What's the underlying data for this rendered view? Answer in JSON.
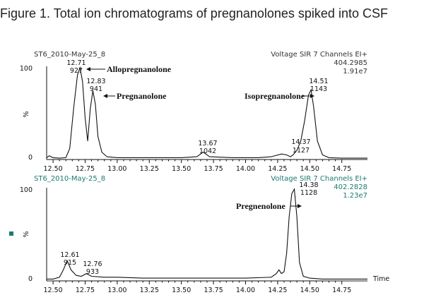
{
  "figure_title": "Figure 1. Total ion chromatograms of pregnanolones spiked into CSF",
  "legend_marker_color": "#1a7a70",
  "chart_data": [
    {
      "type": "line",
      "sample_label": "ST6_2010-May-25_8",
      "channel_info": "Voltage SIR 7 Channels EI+",
      "mass": "404.2985",
      "intensity": "1.91e7",
      "y_tick_labels": [
        "100",
        "%",
        "0"
      ],
      "x_ticks": [
        "12.50",
        "12.75",
        "13.00",
        "13.25",
        "13.50",
        "13.75",
        "14.00",
        "14.25",
        "14.50",
        "14.75"
      ],
      "xlim": [
        12.45,
        14.95
      ],
      "ylim": [
        0,
        100
      ],
      "x_axis_label": "",
      "series": [
        {
          "x": [
            12.45,
            12.47,
            12.5,
            12.55,
            12.6,
            12.63,
            12.66,
            12.69,
            12.71,
            12.73,
            12.75,
            12.77,
            12.79,
            12.81,
            12.83,
            12.85,
            12.88,
            12.92,
            13.0,
            13.2,
            13.5,
            13.62,
            13.67,
            13.72,
            13.9,
            14.1,
            14.2,
            14.28,
            14.32,
            14.35,
            14.37,
            14.4,
            14.43,
            14.46,
            14.49,
            14.51,
            14.53,
            14.56,
            14.6,
            14.65,
            14.75,
            14.95
          ],
          "y": [
            2,
            4,
            2,
            1.5,
            2,
            12,
            55,
            92,
            100,
            85,
            45,
            20,
            55,
            75,
            60,
            25,
            8,
            3,
            2,
            2,
            2,
            3,
            8,
            3,
            2,
            2,
            3,
            6,
            5,
            3,
            5,
            10,
            20,
            42,
            70,
            76,
            58,
            20,
            5,
            2,
            1.5,
            1.5
          ]
        }
      ],
      "peaks": [
        {
          "time": "12.71",
          "area": "927",
          "compound": "Allopregnanolone"
        },
        {
          "time": "12.83",
          "area": "941",
          "compound": "Pregnanolone"
        },
        {
          "time": "13.67",
          "area": "1042",
          "compound": ""
        },
        {
          "time": "14.37",
          "area": "1127",
          "compound": ""
        },
        {
          "time": "14.51",
          "area": "1143",
          "compound": "Isopregnanolone"
        }
      ]
    },
    {
      "type": "line",
      "sample_label": "ST6_2010-May-25_8",
      "channel_info": "Voltage SIR 7 Channels EI+",
      "mass": "402.2828",
      "intensity": "1.23e7",
      "y_tick_labels": [
        "100",
        "%",
        "0"
      ],
      "x_ticks": [
        "12.50",
        "12.75",
        "13.00",
        "13.25",
        "13.50",
        "13.75",
        "14.00",
        "14.25",
        "14.50",
        "14.75"
      ],
      "xlim": [
        12.45,
        14.95
      ],
      "ylim": [
        0,
        100
      ],
      "x_axis_label": "Time",
      "series": [
        {
          "x": [
            12.45,
            12.5,
            12.55,
            12.58,
            12.61,
            12.64,
            12.68,
            12.72,
            12.76,
            12.8,
            12.9,
            13.0,
            13.2,
            13.5,
            13.7,
            14.0,
            14.2,
            14.24,
            14.26,
            14.28,
            14.3,
            14.32,
            14.34,
            14.36,
            14.38,
            14.4,
            14.42,
            14.45,
            14.5,
            14.6,
            14.8,
            14.95
          ],
          "y": [
            2,
            2,
            4,
            12,
            22,
            12,
            6,
            5,
            8,
            5,
            4,
            4,
            3,
            3,
            3,
            3,
            4,
            8,
            12,
            8,
            10,
            30,
            70,
            95,
            100,
            70,
            20,
            5,
            3,
            2,
            2,
            2
          ]
        }
      ],
      "peaks": [
        {
          "time": "12.61",
          "area": "915",
          "compound": ""
        },
        {
          "time": "12.76",
          "area": "933",
          "compound": ""
        },
        {
          "time": "14.38",
          "area": "1128",
          "compound": "Pregnenolone"
        }
      ]
    }
  ]
}
